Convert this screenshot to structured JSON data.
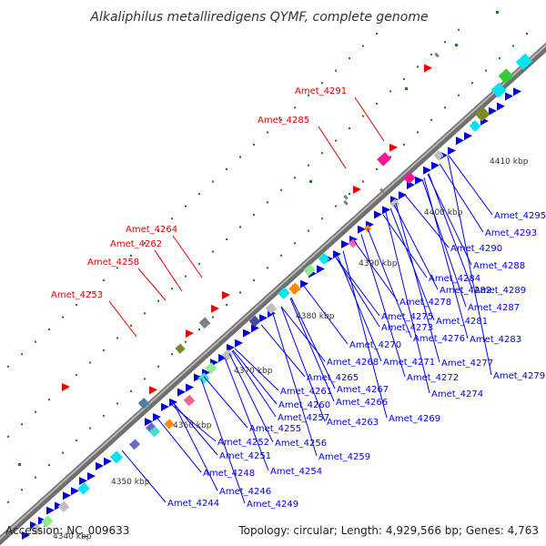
{
  "title": "Alkaliphilus metalliredigens QYMF, complete genome",
  "footer": {
    "accession": "Accession: NC_009633",
    "summary": "Topology: circular; Length: 4,929,566 bp; Genes: 4,763"
  },
  "colors": {
    "backbone": "#8a8a8a",
    "forward_label": "#e00000",
    "reverse_label": "#0000ee",
    "dots": "#1a7a1a"
  },
  "kbp_labels": [
    "4340 kbp",
    "4350 kbp",
    "4360 kbp",
    "4370 kbp",
    "4380 kbp",
    "4390 kbp",
    "4400 kbp",
    "4410 kbp"
  ],
  "forward_genes": [
    "Amet_4291",
    "Amet_4285",
    "Amet_4264",
    "Amet_4262",
    "Amet_4258",
    "Amet_4253"
  ],
  "reverse_genes": [
    "Amet_4295",
    "Amet_4293",
    "Amet_4290",
    "Amet_4288",
    "Amet_4284",
    "Amet_4289",
    "Amet_4282",
    "Amet_4287",
    "Amet_4278",
    "Amet_4281",
    "Amet_4275",
    "Amet_4283",
    "Amet_4273",
    "Amet_4276",
    "Amet_4270",
    "Amet_4277",
    "Amet_4268",
    "Amet_4271",
    "Amet_4279",
    "Amet_4265",
    "Amet_4272",
    "Amet_4261",
    "Amet_4267",
    "Amet_4274",
    "Amet_4260",
    "Amet_4266",
    "Amet_4257",
    "Amet_4263",
    "Amet_4269",
    "Amet_4255",
    "Amet_4252",
    "Amet_4256",
    "Amet_4251",
    "Amet_4259",
    "Amet_4254",
    "Amet_4248",
    "Amet_4246",
    "Amet_4244",
    "Amet_4249"
  ]
}
